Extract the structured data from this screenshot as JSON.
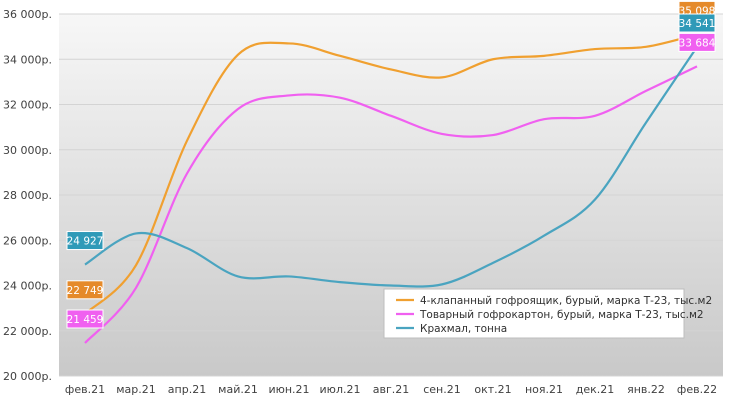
{
  "chart_data": {
    "type": "line",
    "categories": [
      "фев.21",
      "мар.21",
      "апр.21",
      "май.21",
      "июн.21",
      "июл.21",
      "авг.21",
      "сен.21",
      "окт.21",
      "ноя.21",
      "дек.21",
      "янв.22",
      "фев.22"
    ],
    "y_ticks": [
      "20 000р.",
      "22 000р.",
      "24 000р.",
      "26 000р.",
      "28 000р.",
      "30 000р.",
      "32 000р.",
      "34 000р.",
      "36 000р."
    ],
    "ylim": [
      20000,
      36000
    ],
    "grid": true,
    "legend_position": "bottom-right",
    "series": [
      {
        "name": "4-клапанный гофроящик, бурый, марка Т-23, тыс.м2",
        "color": "#f0a030",
        "values": [
          22749,
          24900,
          30400,
          34200,
          34700,
          34150,
          33550,
          33200,
          34000,
          34150,
          34450,
          34550,
          35098
        ],
        "labels": {
          "first": "22 749",
          "last": "35 098"
        },
        "label_color": "#e58a2a"
      },
      {
        "name": "Товарный гофрокартон, бурый, марка Т-23, тыс.м2",
        "color": "#f060f0",
        "values": [
          21459,
          23900,
          28950,
          31800,
          32400,
          32300,
          31500,
          30700,
          30650,
          31350,
          31500,
          32600,
          33684
        ],
        "labels": {
          "first": "21 459",
          "last": "33 684"
        },
        "label_color": "#f060f0"
      },
      {
        "name": "Крахмал, тонна",
        "color": "#4aa4c0",
        "values": [
          24927,
          26300,
          25650,
          24400,
          24400,
          24150,
          24000,
          24050,
          25000,
          26200,
          27800,
          31200,
          34541
        ],
        "labels": {
          "first": "24 927",
          "last": "34 541"
        },
        "label_color": "#2f9ab8"
      }
    ]
  }
}
